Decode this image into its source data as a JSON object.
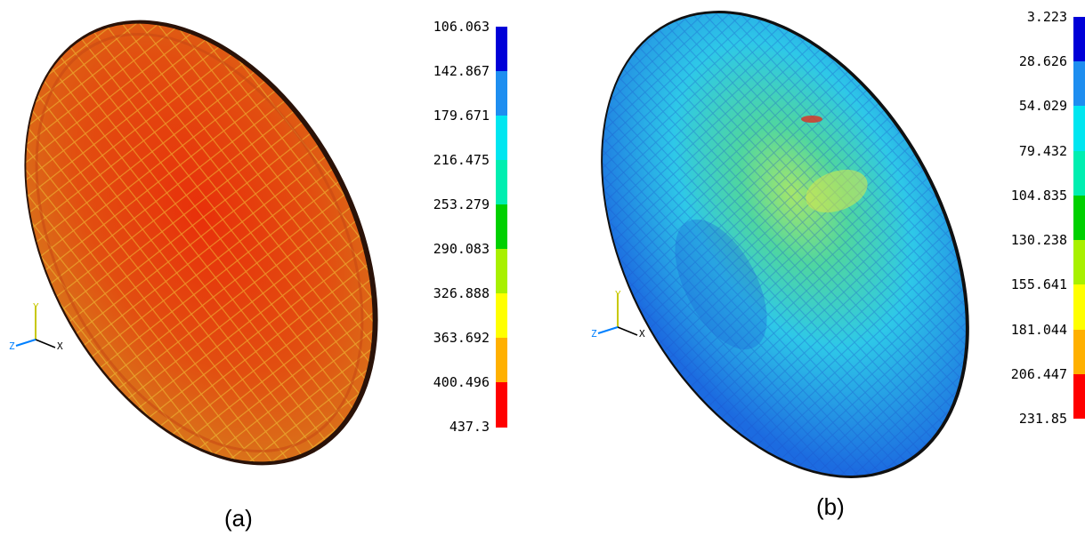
{
  "figure": {
    "panels": [
      {
        "id": "a",
        "caption": "(a)",
        "surface_color": "#e0540f",
        "triad": {
          "y": "Y",
          "z": "Z",
          "x": "X"
        },
        "legend": {
          "labels": [
            "106.063",
            "142.867",
            "179.671",
            "216.475",
            "253.279",
            "290.083",
            "326.888",
            "363.692",
            "400.496",
            "437.3"
          ],
          "colors": [
            "#0000d8",
            "#1e8ef0",
            "#00e6f0",
            "#00eeb0",
            "#00d000",
            "#a8f000",
            "#ffff00",
            "#ffb000",
            "#ff0000"
          ]
        }
      },
      {
        "id": "b",
        "caption": "(b)",
        "surface_color": "#2a8ee6",
        "triad": {
          "y": "Y",
          "z": "Z",
          "x": "X"
        },
        "legend": {
          "labels": [
            "3.223",
            "28.626",
            "54.029",
            "79.432",
            "104.835",
            "130.238",
            "155.641",
            "181.044",
            "206.447",
            "231.85"
          ],
          "colors": [
            "#0000d8",
            "#1e8ef0",
            "#00e6f0",
            "#00eeb0",
            "#00d000",
            "#a8f000",
            "#ffff00",
            "#ffb000",
            "#ff0000"
          ]
        }
      }
    ]
  }
}
